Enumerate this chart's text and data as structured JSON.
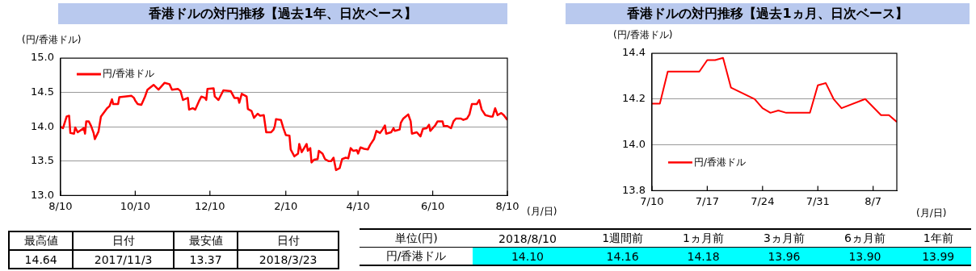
{
  "chart_data": [
    {
      "type": "line",
      "title": "香港ドルの対円推移【過去1年、日次ベース】",
      "ylabel": "(円/香港ドル)",
      "xlabel": "(月/日)",
      "legend": "top left",
      "grid": "y",
      "xlim": [
        "2017-08-10",
        "2018-08-10"
      ],
      "xticks": [
        {
          "value": "2017-08-10",
          "label": "8/10"
        },
        {
          "value": "2017-10-10",
          "label": "10/10"
        },
        {
          "value": "2017-12-10",
          "label": "12/10"
        },
        {
          "value": "2018-02-10",
          "label": "2/10"
        },
        {
          "value": "2018-04-10",
          "label": "4/10"
        },
        {
          "value": "2018-06-10",
          "label": "6/10"
        },
        {
          "value": "2018-08-10",
          "label": "8/10"
        }
      ],
      "ylim": [
        13,
        15
      ],
      "yticks": [
        {
          "value": 13,
          "label": "13.0"
        },
        13.5,
        {
          "value": 14,
          "label": "14.0"
        },
        14.5,
        {
          "value": 15,
          "label": "15.0"
        }
      ],
      "x": [
        "2017-08-10",
        "2017-08-12",
        "2017-08-15",
        "2017-08-17",
        "2017-08-18",
        "2017-08-21",
        "2017-08-22",
        "2017-08-24",
        "2017-08-29",
        "2017-08-30",
        "2017-08-31",
        "2017-09-02",
        "2017-09-04",
        "2017-09-06",
        "2017-09-07",
        "2017-09-10",
        "2017-09-12",
        "2017-09-17",
        "2017-09-19",
        "2017-09-21",
        "2017-09-22",
        "2017-09-26",
        "2017-09-27",
        "2017-10-07",
        "2017-10-09",
        "2017-10-10",
        "2017-10-12",
        "2017-10-15",
        "2017-10-18",
        "2017-10-20",
        "2017-10-25",
        "2017-10-29",
        "2017-11-03",
        "2017-11-07",
        "2017-11-09",
        "2017-11-14",
        "2017-11-16",
        "2017-11-18",
        "2017-11-22",
        "2017-11-23",
        "2017-11-26",
        "2017-11-28",
        "2017-12-01",
        "2017-12-03",
        "2017-12-06",
        "2017-12-07",
        "2017-12-08",
        "2017-12-13",
        "2017-12-14",
        "2017-12-17",
        "2017-12-21",
        "2017-12-27",
        "2017-12-30",
        "2018-01-02",
        "2018-01-03",
        "2018-01-05",
        "2018-01-09",
        "2018-01-10",
        "2018-01-13",
        "2018-01-15",
        "2018-01-18",
        "2018-01-20",
        "2018-01-23",
        "2018-01-25",
        "2018-01-29",
        "2018-01-31",
        "2018-02-01",
        "2018-02-02",
        "2018-02-06",
        "2018-02-08",
        "2018-02-10",
        "2018-02-13",
        "2018-02-14",
        "2018-02-17",
        "2018-02-20",
        "2018-02-21",
        "2018-02-23",
        "2018-02-27",
        "2018-02-28",
        "2018-03-02",
        "2018-03-03",
        "2018-03-05",
        "2018-03-08",
        "2018-03-09",
        "2018-03-12",
        "2018-03-14",
        "2018-03-17",
        "2018-03-19",
        "2018-03-21",
        "2018-03-23",
        "2018-03-26",
        "2018-03-28",
        "2018-03-31",
        "2018-04-02",
        "2018-04-04",
        "2018-04-06",
        "2018-04-09",
        "2018-04-10",
        "2018-04-12",
        "2018-04-15",
        "2018-04-18",
        "2018-04-20",
        "2018-04-23",
        "2018-04-25",
        "2018-04-28",
        "2018-04-30",
        "2018-05-02",
        "2018-05-03",
        "2018-05-07",
        "2018-05-09",
        "2018-05-10",
        "2018-05-14",
        "2018-05-15",
        "2018-05-17",
        "2018-05-21",
        "2018-05-23",
        "2018-05-24",
        "2018-05-28",
        "2018-05-31",
        "2018-06-02",
        "2018-06-05",
        "2018-06-07",
        "2018-06-08",
        "2018-06-12",
        "2018-06-14",
        "2018-06-18",
        "2018-06-19",
        "2018-06-22",
        "2018-06-25",
        "2018-06-27",
        "2018-06-29",
        "2018-07-03",
        "2018-07-05",
        "2018-07-08",
        "2018-07-10",
        "2018-07-12",
        "2018-07-16",
        "2018-07-18",
        "2018-07-20",
        "2018-07-23",
        "2018-07-27",
        "2018-07-29",
        "2018-07-31",
        "2018-08-02",
        "2018-08-05",
        "2018-08-07",
        "2018-08-10"
      ],
      "series": [
        {
          "name": "円/香港ドル",
          "color": "#ff0000",
          "values": [
            14.0,
            13.98,
            14.15,
            14.16,
            13.91,
            13.9,
            13.99,
            13.92,
            13.98,
            13.9,
            14.08,
            14.08,
            14.01,
            13.91,
            13.82,
            13.93,
            14.15,
            14.27,
            14.3,
            14.4,
            14.33,
            14.33,
            14.43,
            14.45,
            14.42,
            14.38,
            14.33,
            14.32,
            14.44,
            14.54,
            14.61,
            14.54,
            14.64,
            14.62,
            14.54,
            14.55,
            14.52,
            14.39,
            14.42,
            14.25,
            14.27,
            14.25,
            14.37,
            14.44,
            14.42,
            14.39,
            14.55,
            14.56,
            14.44,
            14.39,
            14.53,
            14.52,
            14.42,
            14.42,
            14.35,
            14.48,
            14.44,
            14.26,
            14.23,
            14.13,
            14.19,
            14.16,
            14.17,
            13.92,
            13.92,
            13.96,
            14.01,
            14.11,
            14.1,
            13.98,
            13.88,
            13.87,
            13.67,
            13.57,
            13.61,
            13.75,
            13.63,
            13.75,
            13.65,
            13.69,
            13.48,
            13.52,
            13.53,
            13.65,
            13.61,
            13.53,
            13.5,
            13.5,
            13.55,
            13.37,
            13.4,
            13.53,
            13.55,
            13.54,
            13.69,
            13.65,
            13.66,
            13.61,
            13.7,
            13.68,
            13.67,
            13.74,
            13.82,
            13.94,
            13.91,
            13.96,
            14.02,
            13.9,
            13.92,
            13.98,
            13.94,
            13.96,
            14.06,
            14.12,
            14.18,
            14.08,
            13.9,
            13.92,
            13.86,
            13.97,
            13.98,
            14.03,
            13.94,
            14.02,
            14.08,
            14.08,
            14.01,
            14.01,
            13.98,
            14.08,
            14.12,
            14.12,
            14.1,
            14.12,
            14.18,
            14.33,
            14.33,
            14.39,
            14.25,
            14.17,
            14.15,
            14.15,
            14.27,
            14.17,
            14.2,
            14.17,
            14.1
          ]
        }
      ]
    },
    {
      "type": "line",
      "title": "香港ドルの対円推移【過去1ヵ月、日次ベース】",
      "ylabel": "(円/香港ドル)",
      "xlabel": "(月/日)",
      "legend": "bottom left",
      "grid": "y",
      "xlim": [
        "2018-07-10",
        "2018-08-10"
      ],
      "xticks": [
        {
          "value": "2018-07-10",
          "label": "7/10"
        },
        {
          "value": "2018-07-17",
          "label": "7/17"
        },
        {
          "value": "2018-07-24",
          "label": "7/24"
        },
        {
          "value": "2018-07-31",
          "label": "7/31"
        },
        {
          "value": "2018-08-07",
          "label": "8/7"
        }
      ],
      "ylim": [
        13.8,
        14.4
      ],
      "yticks": [
        13.8,
        {
          "value": 14,
          "label": "14.0"
        },
        14.2,
        14.4
      ],
      "x": [
        "2018-07-10",
        "2018-07-11",
        "2018-07-12",
        "2018-07-13",
        "2018-07-16",
        "2018-07-17",
        "2018-07-18",
        "2018-07-19",
        "2018-07-20",
        "2018-07-23",
        "2018-07-24",
        "2018-07-25",
        "2018-07-26",
        "2018-07-27",
        "2018-07-30",
        "2018-07-31",
        "2018-08-01",
        "2018-08-02",
        "2018-08-03",
        "2018-08-06",
        "2018-08-08",
        "2018-08-09",
        "2018-08-10"
      ],
      "series": [
        {
          "name": "円/香港ドル",
          "color": "#ff0000",
          "values": [
            14.18,
            14.18,
            14.32,
            14.32,
            14.32,
            14.37,
            14.37,
            14.38,
            14.25,
            14.2,
            14.16,
            14.14,
            14.15,
            14.14,
            14.14,
            14.26,
            14.27,
            14.2,
            14.16,
            14.2,
            14.13,
            14.13,
            14.1
          ]
        }
      ]
    },
    {
      "type": "other",
      "categories": [
        "最高値",
        "日付",
        "最安値",
        "日付"
      ],
      "value_labels": [
        "14.64",
        "2017/11/3",
        "13.37",
        "2018/3/23"
      ]
    },
    {
      "type": "other",
      "legend_title": "単位(円)",
      "categories": [
        "2018/8/10",
        "1週間前",
        "1ヵ月前",
        "3ヵ月前",
        "6ヵ月前",
        "1年前"
      ],
      "series": [
        {
          "name": "円/香港ドル",
          "color": "#00ffff",
          "values": [
            14.1,
            14.16,
            14.18,
            13.96,
            13.9,
            13.99
          ],
          "value_labels": [
            "14.10",
            "14.16",
            "14.18",
            "13.96",
            "13.90",
            "13.99"
          ]
        }
      ]
    }
  ]
}
